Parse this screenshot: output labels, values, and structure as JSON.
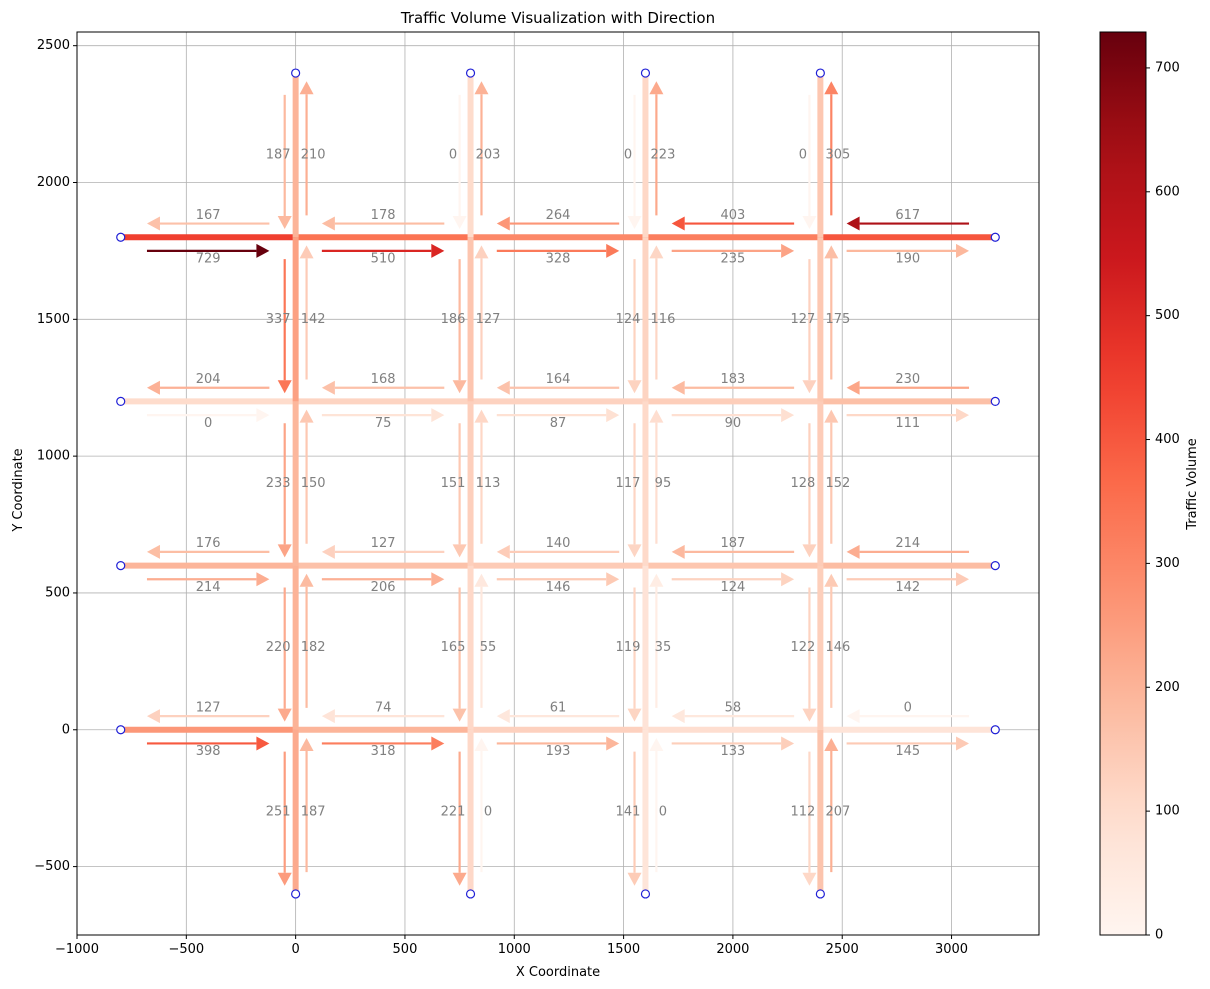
{
  "chart_data": {
    "type": "network",
    "title": "Traffic Volume Visualization with Direction",
    "xlabel": "X Coordinate",
    "ylabel": "Y Coordinate",
    "xlim": [
      -1000,
      3400
    ],
    "ylim": [
      -750,
      2550
    ],
    "xticks": [
      -1000,
      -500,
      0,
      500,
      1000,
      1500,
      2000,
      2500,
      3000
    ],
    "xtick_labels": [
      "−1000",
      "−500",
      "0",
      "500",
      "1000",
      "1500",
      "2000",
      "2500",
      "3000"
    ],
    "yticks": [
      -500,
      0,
      500,
      1000,
      1500,
      2000,
      2500
    ],
    "ytick_labels": [
      "−500",
      "0",
      "500",
      "1000",
      "1500",
      "2000",
      "2500"
    ],
    "grid": true,
    "colorbar": {
      "label": "Traffic Volume",
      "min": 0,
      "max": 729,
      "ticks": [
        0,
        100,
        200,
        300,
        400,
        500,
        600,
        700
      ],
      "tick_labels": [
        "0",
        "100",
        "200",
        "300",
        "400",
        "500",
        "600",
        "700"
      ],
      "colormap": "Reds"
    },
    "nodes": {
      "x": [
        -800,
        0,
        800,
        1600,
        2400,
        3200
      ],
      "y": [
        -600,
        0,
        600,
        1200,
        1800,
        2400
      ]
    },
    "horizontal_flows": [
      {
        "y": 1800,
        "west": [
          167,
          178,
          264,
          403,
          617
        ],
        "east": [
          729,
          510,
          328,
          235,
          190
        ]
      },
      {
        "y": 1200,
        "west": [
          204,
          168,
          164,
          183,
          230
        ],
        "east": [
          0,
          75,
          87,
          90,
          111
        ]
      },
      {
        "y": 600,
        "west": [
          176,
          127,
          140,
          187,
          214
        ],
        "east": [
          214,
          206,
          146,
          124,
          142
        ]
      },
      {
        "y": 0,
        "west": [
          127,
          74,
          61,
          58,
          0
        ],
        "east": [
          398,
          318,
          193,
          133,
          145
        ]
      }
    ],
    "vertical_flows": [
      {
        "x": 0,
        "south": [
          251,
          220,
          233,
          337,
          187
        ],
        "north": [
          187,
          182,
          150,
          142,
          210
        ]
      },
      {
        "x": 800,
        "south": [
          221,
          165,
          151,
          186,
          0
        ],
        "north": [
          0,
          55,
          113,
          127,
          203
        ]
      },
      {
        "x": 1600,
        "south": [
          141,
          119,
          117,
          124,
          0
        ],
        "north": [
          0,
          35,
          95,
          116,
          223
        ]
      },
      {
        "x": 2400,
        "south": [
          112,
          122,
          128,
          127,
          0
        ],
        "north": [
          207,
          146,
          152,
          175,
          305
        ]
      }
    ]
  }
}
